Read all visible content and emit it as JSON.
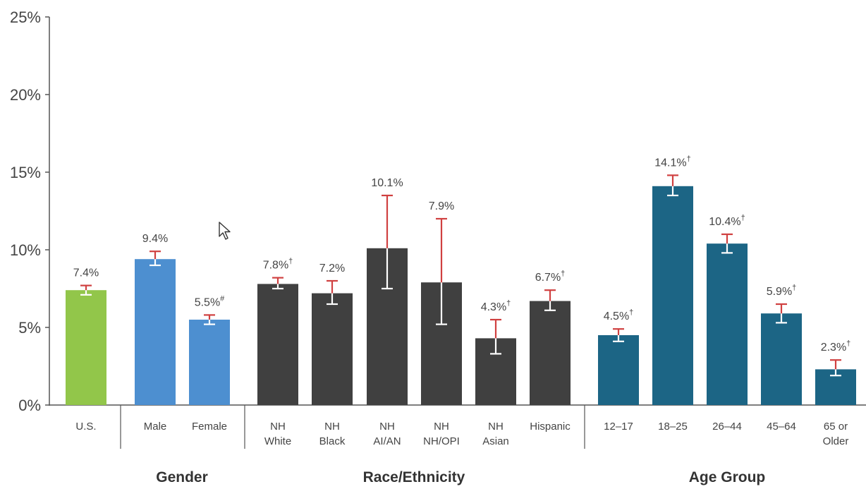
{
  "chart_data": {
    "type": "bar",
    "ylim": [
      0,
      25
    ],
    "yticks": [
      0,
      5,
      10,
      15,
      20,
      25
    ],
    "ytick_labels": [
      "0%",
      "5%",
      "10%",
      "15%",
      "20%",
      "25%"
    ],
    "grid": false,
    "legend": "none",
    "colors": {
      "us": "#92c64a",
      "gender": "#4d8fd0",
      "race": "#404040",
      "age": "#1c6585",
      "ci_upper": "#d04040",
      "ci_lower": "#ffffff",
      "axis": "#555555",
      "text": "#444444"
    },
    "groups": [
      {
        "name": "",
        "color_key": "us",
        "bars": [
          {
            "category": [
              "U.S."
            ],
            "value": 7.4,
            "label": "7.4%",
            "mark": "",
            "ci": [
              7.1,
              7.7
            ]
          }
        ]
      },
      {
        "name": "Gender",
        "color_key": "gender",
        "bars": [
          {
            "category": [
              "Male"
            ],
            "value": 9.4,
            "label": "9.4%",
            "mark": "",
            "ci": [
              9.0,
              9.9
            ]
          },
          {
            "category": [
              "Female"
            ],
            "value": 5.5,
            "label": "5.5%",
            "mark": "#",
            "ci": [
              5.2,
              5.8
            ]
          }
        ]
      },
      {
        "name": "Race/Ethnicity",
        "color_key": "race",
        "bars": [
          {
            "category": [
              "NH",
              "White"
            ],
            "value": 7.8,
            "label": "7.8%",
            "mark": "†",
            "ci": [
              7.5,
              8.2
            ]
          },
          {
            "category": [
              "NH",
              "Black"
            ],
            "value": 7.2,
            "label": "7.2%",
            "mark": "",
            "ci": [
              6.5,
              8.0
            ]
          },
          {
            "category": [
              "NH",
              "AI/AN"
            ],
            "value": 10.1,
            "label": "10.1%",
            "mark": "",
            "ci": [
              7.5,
              13.5
            ]
          },
          {
            "category": [
              "NH",
              "NH/OPI"
            ],
            "value": 7.9,
            "label": "7.9%",
            "mark": "",
            "ci": [
              5.2,
              12.0
            ]
          },
          {
            "category": [
              "NH",
              "Asian"
            ],
            "value": 4.3,
            "label": "4.3%",
            "mark": "†",
            "ci": [
              3.3,
              5.5
            ]
          },
          {
            "category": [
              "Hispanic"
            ],
            "value": 6.7,
            "label": "6.7%",
            "mark": "†",
            "ci": [
              6.1,
              7.4
            ]
          }
        ]
      },
      {
        "name": "Age Group",
        "color_key": "age",
        "bars": [
          {
            "category": [
              "12–17"
            ],
            "value": 4.5,
            "label": "4.5%",
            "mark": "†",
            "ci": [
              4.1,
              4.9
            ]
          },
          {
            "category": [
              "18–25"
            ],
            "value": 14.1,
            "label": "14.1%",
            "mark": "†",
            "ci": [
              13.5,
              14.8
            ]
          },
          {
            "category": [
              "26–44"
            ],
            "value": 10.4,
            "label": "10.4%",
            "mark": "†",
            "ci": [
              9.8,
              11.0
            ]
          },
          {
            "category": [
              "45–64"
            ],
            "value": 5.9,
            "label": "5.9%",
            "mark": "†",
            "ci": [
              5.3,
              6.5
            ]
          },
          {
            "category": [
              "65 or",
              "Older"
            ],
            "value": 2.3,
            "label": "2.3%",
            "mark": "†",
            "ci": [
              1.9,
              2.9
            ]
          }
        ]
      }
    ]
  }
}
